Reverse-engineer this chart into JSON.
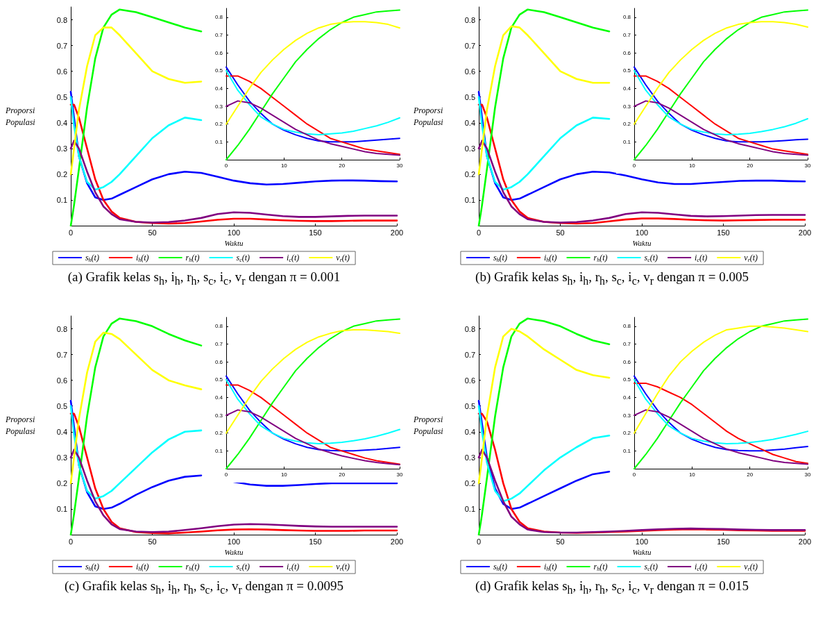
{
  "chart_data": [
    {
      "type": "line",
      "xlabel": "Waktu",
      "ylabel": "Proporsi Populasi",
      "annotations": [
        "(a) Grafik kelas s$_{h}$, i$_{h}$, r$_{h}$, s$_{c}$, i$_{c}$, v$_{r}$ dengan π = 0.001"
      ],
      "legend": "bottom",
      "marker": "none",
      "line_style": "solid",
      "xlim": [
        0,
        200
      ],
      "xticks": [
        0,
        50,
        100,
        150,
        200
      ],
      "ylim": [
        0,
        0.85
      ],
      "yticks": [
        0.1,
        0.2,
        0.3,
        0.4,
        0.5,
        0.6,
        0.7,
        0.8
      ],
      "x": [
        0,
        2,
        5,
        10,
        15,
        20,
        25,
        30,
        40,
        50,
        60,
        70,
        80,
        90,
        100,
        110,
        120,
        130,
        140,
        150,
        160,
        170,
        180,
        190,
        200
      ],
      "series": [
        {
          "name": "s$_{h}$(t)",
          "color": "#0000ff",
          "values": [
            0.52,
            0.42,
            0.27,
            0.165,
            0.11,
            0.1,
            0.105,
            0.12,
            0.15,
            0.18,
            0.2,
            0.21,
            0.205,
            0.19,
            0.175,
            0.165,
            0.16,
            0.162,
            0.167,
            0.172,
            0.175,
            0.176,
            0.175,
            0.173,
            0.172
          ]
        },
        {
          "name": "i$_{h}$(t)",
          "color": "#ff0000",
          "values": [
            0.47,
            0.47,
            0.42,
            0.3,
            0.18,
            0.1,
            0.055,
            0.03,
            0.015,
            0.01,
            0.008,
            0.01,
            0.016,
            0.023,
            0.027,
            0.027,
            0.024,
            0.021,
            0.019,
            0.018,
            0.018,
            0.019,
            0.02,
            0.02,
            0.02
          ]
        },
        {
          "name": "r$_{h}$(t)",
          "color": "#00ff00",
          "values": [
            0,
            0.08,
            0.22,
            0.46,
            0.65,
            0.77,
            0.82,
            0.84,
            0.83,
            0.81,
            0.79,
            0.77,
            0.755,
            null,
            null,
            null,
            null,
            null,
            null,
            null,
            null,
            null,
            null,
            null,
            null
          ]
        },
        {
          "name": "s$_{c}$(t)",
          "color": "#00ffff",
          "values": [
            0.5,
            0.39,
            0.27,
            0.17,
            0.14,
            0.15,
            0.17,
            0.2,
            0.27,
            0.34,
            0.39,
            0.42,
            0.41,
            null,
            null,
            null,
            null,
            null,
            null,
            null,
            null,
            null,
            null,
            null,
            null
          ]
        },
        {
          "name": "i$_{c}$(t)",
          "color": "#800080",
          "values": [
            0.3,
            0.33,
            0.3,
            0.21,
            0.13,
            0.075,
            0.045,
            0.025,
            0.015,
            0.012,
            0.014,
            0.02,
            0.03,
            0.045,
            0.052,
            0.05,
            0.043,
            0.037,
            0.034,
            0.034,
            0.036,
            0.038,
            0.039,
            0.039,
            0.039
          ]
        },
        {
          "name": "v$_{r}$(t)",
          "color": "#ffff00",
          "values": [
            0.2,
            0.3,
            0.45,
            0.62,
            0.74,
            0.77,
            0.77,
            0.74,
            0.67,
            0.6,
            0.57,
            0.555,
            0.56,
            null,
            null,
            null,
            null,
            null,
            null,
            null,
            null,
            null,
            null,
            null,
            null
          ]
        }
      ]
    },
    {
      "type": "line",
      "marker": "none",
      "line_style": "solid",
      "xlim": [
        0,
        30
      ],
      "xticks": [
        0,
        10,
        20,
        30
      ],
      "ylim": [
        0,
        0.85
      ],
      "yticks": [
        0.1,
        0.2,
        0.3,
        0.4,
        0.5,
        0.6,
        0.7,
        0.8
      ],
      "x": [
        0,
        2,
        4,
        6,
        8,
        10,
        12,
        14,
        16,
        18,
        20,
        22,
        24,
        26,
        28,
        30
      ],
      "series": [
        {
          "color": "#0000ff",
          "values": [
            0.52,
            0.42,
            0.33,
            0.26,
            0.2,
            0.165,
            0.14,
            0.12,
            0.105,
            0.1,
            0.1,
            0.1,
            0.105,
            0.11,
            0.115,
            0.12
          ]
        },
        {
          "color": "#ff0000",
          "values": [
            0.47,
            0.47,
            0.44,
            0.4,
            0.35,
            0.3,
            0.25,
            0.2,
            0.16,
            0.12,
            0.1,
            0.08,
            0.06,
            0.05,
            0.04,
            0.03
          ]
        },
        {
          "color": "#00ff00",
          "values": [
            0,
            0.08,
            0.17,
            0.27,
            0.37,
            0.46,
            0.55,
            0.62,
            0.68,
            0.73,
            0.77,
            0.8,
            0.815,
            0.83,
            0.835,
            0.84
          ]
        },
        {
          "color": "#00ffff",
          "values": [
            0.5,
            0.39,
            0.31,
            0.24,
            0.2,
            0.17,
            0.155,
            0.145,
            0.14,
            0.145,
            0.15,
            0.16,
            0.175,
            0.19,
            0.21,
            0.235
          ]
        },
        {
          "color": "#800080",
          "values": [
            0.3,
            0.33,
            0.32,
            0.29,
            0.25,
            0.21,
            0.17,
            0.14,
            0.11,
            0.09,
            0.075,
            0.06,
            0.045,
            0.035,
            0.03,
            0.025
          ]
        },
        {
          "color": "#ffff00",
          "values": [
            0.2,
            0.3,
            0.4,
            0.49,
            0.56,
            0.62,
            0.67,
            0.71,
            0.74,
            0.76,
            0.77,
            0.775,
            0.775,
            0.77,
            0.76,
            0.74
          ]
        }
      ]
    },
    {
      "type": "line",
      "xlabel": "Waktu",
      "ylabel": "Proporsi Populasi",
      "annotations": [
        "(b) Grafik kelas s$_{h}$, i$_{h}$, r$_{h}$, s$_{c}$, i$_{c}$, v$_{r}$ dengan π = 0.005"
      ],
      "legend": "bottom",
      "marker": "none",
      "line_style": "solid",
      "xlim": [
        0,
        200
      ],
      "xticks": [
        0,
        50,
        100,
        150,
        200
      ],
      "ylim": [
        0,
        0.85
      ],
      "yticks": [
        0.1,
        0.2,
        0.3,
        0.4,
        0.5,
        0.6,
        0.7,
        0.8
      ],
      "x": [
        0,
        2,
        5,
        10,
        15,
        20,
        25,
        30,
        40,
        50,
        60,
        70,
        80,
        90,
        100,
        110,
        120,
        130,
        140,
        150,
        160,
        170,
        180,
        190,
        200
      ],
      "series": [
        {
          "name": "s$_{h}$(t)",
          "color": "#0000ff",
          "values": [
            0.52,
            0.42,
            0.27,
            0.165,
            0.11,
            0.1,
            0.105,
            0.12,
            0.15,
            0.18,
            0.2,
            0.21,
            0.207,
            0.195,
            0.18,
            0.168,
            0.162,
            0.162,
            0.166,
            0.17,
            0.174,
            0.175,
            0.175,
            0.173,
            0.172
          ]
        },
        {
          "name": "i$_{h}$(t)",
          "color": "#ff0000",
          "values": [
            0.47,
            0.47,
            0.42,
            0.3,
            0.18,
            0.1,
            0.055,
            0.03,
            0.015,
            0.01,
            0.008,
            0.01,
            0.017,
            0.024,
            0.028,
            0.028,
            0.026,
            0.023,
            0.021,
            0.02,
            0.021,
            0.022,
            0.023,
            0.023,
            0.023
          ]
        },
        {
          "name": "r$_{h}$(t)",
          "color": "#00ff00",
          "values": [
            0,
            0.08,
            0.22,
            0.46,
            0.65,
            0.77,
            0.82,
            0.84,
            0.83,
            0.81,
            0.79,
            0.77,
            0.755,
            null,
            null,
            null,
            null,
            null,
            null,
            null,
            null,
            null,
            null,
            null,
            null
          ]
        },
        {
          "name": "s$_{c}$(t)",
          "color": "#00ffff",
          "values": [
            0.5,
            0.39,
            0.27,
            0.17,
            0.14,
            0.15,
            0.17,
            0.2,
            0.27,
            0.34,
            0.39,
            0.42,
            0.415,
            null,
            null,
            null,
            null,
            null,
            null,
            null,
            null,
            null,
            null,
            null,
            null
          ]
        },
        {
          "name": "i$_{c}$(t)",
          "color": "#800080",
          "values": [
            0.3,
            0.33,
            0.3,
            0.21,
            0.13,
            0.075,
            0.045,
            0.025,
            0.015,
            0.012,
            0.014,
            0.02,
            0.03,
            0.045,
            0.052,
            0.05,
            0.044,
            0.038,
            0.036,
            0.037,
            0.039,
            0.041,
            0.042,
            0.042,
            0.042
          ]
        },
        {
          "name": "v$_{r}$(t)",
          "color": "#ffff00",
          "values": [
            0.2,
            0.3,
            0.45,
            0.62,
            0.74,
            0.775,
            0.77,
            0.74,
            0.67,
            0.6,
            0.57,
            0.555,
            0.555,
            null,
            null,
            null,
            null,
            null,
            null,
            null,
            null,
            null,
            null,
            null,
            null
          ]
        }
      ]
    },
    {
      "type": "line",
      "marker": "none",
      "line_style": "solid",
      "xlim": [
        0,
        30
      ],
      "xticks": [
        0,
        10,
        20,
        30
      ],
      "ylim": [
        0,
        0.85
      ],
      "yticks": [
        0.1,
        0.2,
        0.3,
        0.4,
        0.5,
        0.6,
        0.7,
        0.8
      ],
      "x": [
        0,
        2,
        4,
        6,
        8,
        10,
        12,
        14,
        16,
        18,
        20,
        22,
        24,
        26,
        28,
        30
      ],
      "series": [
        {
          "color": "#0000ff",
          "values": [
            0.52,
            0.42,
            0.33,
            0.26,
            0.2,
            0.165,
            0.14,
            0.12,
            0.105,
            0.1,
            0.1,
            0.1,
            0.103,
            0.107,
            0.112,
            0.115
          ]
        },
        {
          "color": "#ff0000",
          "values": [
            0.47,
            0.47,
            0.44,
            0.4,
            0.35,
            0.3,
            0.25,
            0.2,
            0.16,
            0.12,
            0.1,
            0.08,
            0.06,
            0.05,
            0.04,
            0.03
          ]
        },
        {
          "color": "#00ff00",
          "values": [
            0,
            0.08,
            0.17,
            0.27,
            0.37,
            0.46,
            0.55,
            0.62,
            0.68,
            0.73,
            0.77,
            0.8,
            0.815,
            0.83,
            0.835,
            0.84
          ]
        },
        {
          "color": "#00ffff",
          "values": [
            0.5,
            0.39,
            0.31,
            0.24,
            0.2,
            0.17,
            0.155,
            0.145,
            0.14,
            0.143,
            0.148,
            0.158,
            0.17,
            0.185,
            0.205,
            0.23
          ]
        },
        {
          "color": "#800080",
          "values": [
            0.3,
            0.33,
            0.32,
            0.29,
            0.25,
            0.21,
            0.17,
            0.14,
            0.11,
            0.09,
            0.075,
            0.06,
            0.045,
            0.035,
            0.03,
            0.025
          ]
        },
        {
          "color": "#ffff00",
          "values": [
            0.2,
            0.3,
            0.4,
            0.49,
            0.56,
            0.62,
            0.67,
            0.71,
            0.74,
            0.76,
            0.77,
            0.775,
            0.775,
            0.77,
            0.76,
            0.745
          ]
        }
      ]
    },
    {
      "type": "line",
      "xlabel": "Waktu",
      "ylabel": "Proporsi Populasi",
      "annotations": [
        "(c) Grafik kelas s$_{h}$, i$_{h}$, r$_{h}$, s$_{c}$, i$_{c}$, v$_{r}$ dengan π = 0.0095"
      ],
      "legend": "bottom",
      "marker": "none",
      "line_style": "solid",
      "xlim": [
        0,
        200
      ],
      "xticks": [
        0,
        50,
        100,
        150,
        200
      ],
      "ylim": [
        0,
        0.85
      ],
      "yticks": [
        0.1,
        0.2,
        0.3,
        0.4,
        0.5,
        0.6,
        0.7,
        0.8
      ],
      "x": [
        0,
        2,
        5,
        10,
        15,
        20,
        25,
        30,
        40,
        50,
        60,
        70,
        80,
        90,
        100,
        110,
        120,
        130,
        140,
        150,
        160,
        170,
        180,
        190,
        200
      ],
      "series": [
        {
          "name": "s$_{h}$(t)",
          "color": "#0000ff",
          "values": [
            0.52,
            0.42,
            0.27,
            0.165,
            0.11,
            0.1,
            0.105,
            0.12,
            0.155,
            0.185,
            0.21,
            0.225,
            0.23,
            null,
            0.205,
            0.195,
            0.19,
            0.19,
            0.193,
            0.197,
            0.2,
            0.2,
            0.2,
            0.2,
            0.2
          ]
        },
        {
          "name": "i$_{h}$(t)",
          "color": "#ff0000",
          "values": [
            0.47,
            0.47,
            0.42,
            0.3,
            0.18,
            0.1,
            0.05,
            0.025,
            0.01,
            0.006,
            0.005,
            0.008,
            0.012,
            0.017,
            0.02,
            0.021,
            0.02,
            0.018,
            0.016,
            0.015,
            0.015,
            0.015,
            0.016,
            0.016,
            0.016
          ]
        },
        {
          "name": "r$_{h}$(t)",
          "color": "#00ff00",
          "values": [
            0,
            0.08,
            0.22,
            0.46,
            0.65,
            0.77,
            0.82,
            0.84,
            0.83,
            0.81,
            0.78,
            0.755,
            0.735,
            null,
            null,
            null,
            null,
            null,
            null,
            null,
            null,
            null,
            null,
            null,
            null
          ]
        },
        {
          "name": "s$_{c}$(t)",
          "color": "#00ffff",
          "values": [
            0.5,
            0.39,
            0.27,
            0.17,
            0.14,
            0.15,
            0.17,
            0.2,
            0.26,
            0.32,
            0.37,
            0.4,
            0.405,
            null,
            null,
            null,
            null,
            null,
            null,
            null,
            null,
            null,
            null,
            null,
            null
          ]
        },
        {
          "name": "i$_{c}$(t)",
          "color": "#800080",
          "values": [
            0.3,
            0.33,
            0.3,
            0.21,
            0.13,
            0.075,
            0.04,
            0.022,
            0.012,
            0.01,
            0.012,
            0.018,
            0.025,
            0.033,
            0.039,
            0.041,
            0.04,
            0.037,
            0.034,
            0.032,
            0.031,
            0.031,
            0.031,
            0.031,
            0.031
          ]
        },
        {
          "name": "v$_{r}$(t)",
          "color": "#ffff00",
          "values": [
            0.2,
            0.3,
            0.45,
            0.63,
            0.75,
            0.785,
            0.78,
            0.76,
            0.7,
            0.64,
            0.6,
            0.58,
            0.565,
            null,
            null,
            null,
            null,
            null,
            null,
            null,
            null,
            null,
            null,
            null,
            null
          ]
        }
      ]
    },
    {
      "type": "line",
      "marker": "none",
      "line_style": "solid",
      "xlim": [
        0,
        30
      ],
      "xticks": [
        0,
        10,
        20,
        30
      ],
      "ylim": [
        0,
        0.85
      ],
      "yticks": [
        0.1,
        0.2,
        0.3,
        0.4,
        0.5,
        0.6,
        0.7,
        0.8
      ],
      "x": [
        0,
        2,
        4,
        6,
        8,
        10,
        12,
        14,
        16,
        18,
        20,
        22,
        24,
        26,
        28,
        30
      ],
      "series": [
        {
          "color": "#0000ff",
          "values": [
            0.52,
            0.42,
            0.33,
            0.26,
            0.2,
            0.165,
            0.14,
            0.12,
            0.107,
            0.102,
            0.1,
            0.1,
            0.104,
            0.108,
            0.114,
            0.12
          ]
        },
        {
          "color": "#ff0000",
          "values": [
            0.47,
            0.47,
            0.44,
            0.4,
            0.35,
            0.3,
            0.25,
            0.2,
            0.16,
            0.12,
            0.1,
            0.08,
            0.06,
            0.045,
            0.035,
            0.025
          ]
        },
        {
          "color": "#00ff00",
          "values": [
            0,
            0.08,
            0.17,
            0.27,
            0.37,
            0.46,
            0.55,
            0.62,
            0.68,
            0.73,
            0.77,
            0.8,
            0.815,
            0.83,
            0.835,
            0.84
          ]
        },
        {
          "color": "#00ffff",
          "values": [
            0.5,
            0.39,
            0.31,
            0.24,
            0.2,
            0.17,
            0.155,
            0.145,
            0.14,
            0.143,
            0.148,
            0.157,
            0.168,
            0.182,
            0.2,
            0.22
          ]
        },
        {
          "color": "#800080",
          "values": [
            0.3,
            0.33,
            0.32,
            0.29,
            0.25,
            0.21,
            0.17,
            0.14,
            0.11,
            0.09,
            0.072,
            0.058,
            0.045,
            0.035,
            0.028,
            0.022
          ]
        },
        {
          "color": "#ffff00",
          "values": [
            0.2,
            0.3,
            0.4,
            0.49,
            0.56,
            0.62,
            0.67,
            0.71,
            0.74,
            0.76,
            0.775,
            0.78,
            0.78,
            0.775,
            0.77,
            0.76
          ]
        }
      ]
    },
    {
      "type": "line",
      "xlabel": "Waktu",
      "ylabel": "Proporsi Populasi",
      "annotations": [
        "(d) Grafik kelas s$_{h}$, i$_{h}$, r$_{h}$, s$_{c}$, i$_{c}$, v$_{r}$ dengan π = 0.015"
      ],
      "legend": "bottom",
      "marker": "none",
      "line_style": "solid",
      "xlim": [
        0,
        200
      ],
      "xticks": [
        0,
        50,
        100,
        150,
        200
      ],
      "ylim": [
        0,
        0.85
      ],
      "yticks": [
        0.1,
        0.2,
        0.3,
        0.4,
        0.5,
        0.6,
        0.7,
        0.8
      ],
      "x": [
        0,
        2,
        5,
        10,
        15,
        20,
        25,
        30,
        40,
        50,
        60,
        70,
        80,
        90,
        100,
        110,
        120,
        130,
        140,
        150,
        160,
        170,
        180,
        190,
        200
      ],
      "series": [
        {
          "name": "s$_{h}$(t)",
          "color": "#0000ff",
          "values": [
            0.52,
            0.43,
            0.3,
            0.18,
            0.12,
            0.1,
            0.105,
            0.12,
            0.15,
            0.18,
            0.21,
            0.235,
            0.245,
            null,
            null,
            null,
            null,
            null,
            null,
            null,
            null,
            null,
            null,
            null,
            null
          ]
        },
        {
          "name": "i$_{h}$(t)",
          "color": "#ff0000",
          "values": [
            0.47,
            0.47,
            0.44,
            0.33,
            0.2,
            0.1,
            0.05,
            0.025,
            0.012,
            0.008,
            0.007,
            0.008,
            0.01,
            0.012,
            0.015,
            0.018,
            0.02,
            0.021,
            0.02,
            0.019,
            0.017,
            0.016,
            0.015,
            0.015,
            0.015
          ]
        },
        {
          "name": "r$_{h}$(t)",
          "color": "#00ff00",
          "values": [
            0,
            0.08,
            0.22,
            0.46,
            0.65,
            0.77,
            0.82,
            0.84,
            0.83,
            0.81,
            0.78,
            0.755,
            0.74,
            null,
            null,
            null,
            null,
            null,
            null,
            null,
            null,
            null,
            null,
            null,
            null
          ]
        },
        {
          "name": "s$_{c}$(t)",
          "color": "#00ffff",
          "values": [
            0.5,
            0.4,
            0.28,
            0.17,
            0.13,
            0.14,
            0.16,
            0.19,
            0.25,
            0.3,
            0.34,
            0.375,
            0.385,
            null,
            null,
            null,
            null,
            null,
            null,
            null,
            null,
            null,
            null,
            null,
            null
          ]
        },
        {
          "name": "i$_{c}$(t)",
          "color": "#800080",
          "values": [
            0.3,
            0.33,
            0.3,
            0.21,
            0.13,
            0.07,
            0.04,
            0.02,
            0.01,
            0.008,
            0.008,
            0.01,
            0.012,
            0.015,
            0.018,
            0.021,
            0.023,
            0.024,
            0.023,
            0.022,
            0.02,
            0.019,
            0.018,
            0.018,
            0.018
          ]
        },
        {
          "name": "v$_{r}$(t)",
          "color": "#ffff00",
          "values": [
            0.2,
            0.3,
            0.46,
            0.65,
            0.77,
            0.8,
            0.79,
            0.77,
            0.72,
            0.68,
            0.64,
            0.62,
            0.61,
            null,
            null,
            null,
            null,
            null,
            null,
            null,
            null,
            null,
            null,
            null,
            null
          ]
        }
      ]
    },
    {
      "type": "line",
      "marker": "none",
      "line_style": "solid",
      "xlim": [
        0,
        30
      ],
      "xticks": [
        0,
        10,
        20,
        30
      ],
      "ylim": [
        0,
        0.85
      ],
      "yticks": [
        0.1,
        0.2,
        0.3,
        0.4,
        0.5,
        0.6,
        0.7,
        0.8
      ],
      "x": [
        0,
        2,
        4,
        6,
        8,
        10,
        12,
        14,
        16,
        18,
        20,
        22,
        24,
        26,
        28,
        30
      ],
      "series": [
        {
          "color": "#0000ff",
          "values": [
            0.52,
            0.42,
            0.33,
            0.26,
            0.2,
            0.165,
            0.14,
            0.12,
            0.107,
            0.102,
            0.1,
            0.1,
            0.105,
            0.11,
            0.118,
            0.125
          ]
        },
        {
          "color": "#ff0000",
          "values": [
            0.48,
            0.48,
            0.46,
            0.43,
            0.4,
            0.36,
            0.31,
            0.26,
            0.21,
            0.17,
            0.14,
            0.11,
            0.08,
            0.06,
            0.04,
            0.03
          ]
        },
        {
          "color": "#00ff00",
          "values": [
            0,
            0.08,
            0.17,
            0.27,
            0.37,
            0.46,
            0.55,
            0.62,
            0.68,
            0.73,
            0.77,
            0.8,
            0.815,
            0.83,
            0.835,
            0.84
          ]
        },
        {
          "color": "#00ffff",
          "values": [
            0.5,
            0.39,
            0.31,
            0.24,
            0.2,
            0.17,
            0.155,
            0.145,
            0.14,
            0.142,
            0.147,
            0.155,
            0.165,
            0.178,
            0.193,
            0.21
          ]
        },
        {
          "color": "#800080",
          "values": [
            0.3,
            0.33,
            0.32,
            0.29,
            0.25,
            0.21,
            0.17,
            0.14,
            0.11,
            0.09,
            0.075,
            0.06,
            0.045,
            0.035,
            0.03,
            0.025
          ]
        },
        {
          "color": "#ffff00",
          "values": [
            0.2,
            0.31,
            0.42,
            0.52,
            0.6,
            0.66,
            0.71,
            0.75,
            0.78,
            0.79,
            0.8,
            0.8,
            0.795,
            0.79,
            0.78,
            0.77
          ]
        }
      ]
    }
  ]
}
